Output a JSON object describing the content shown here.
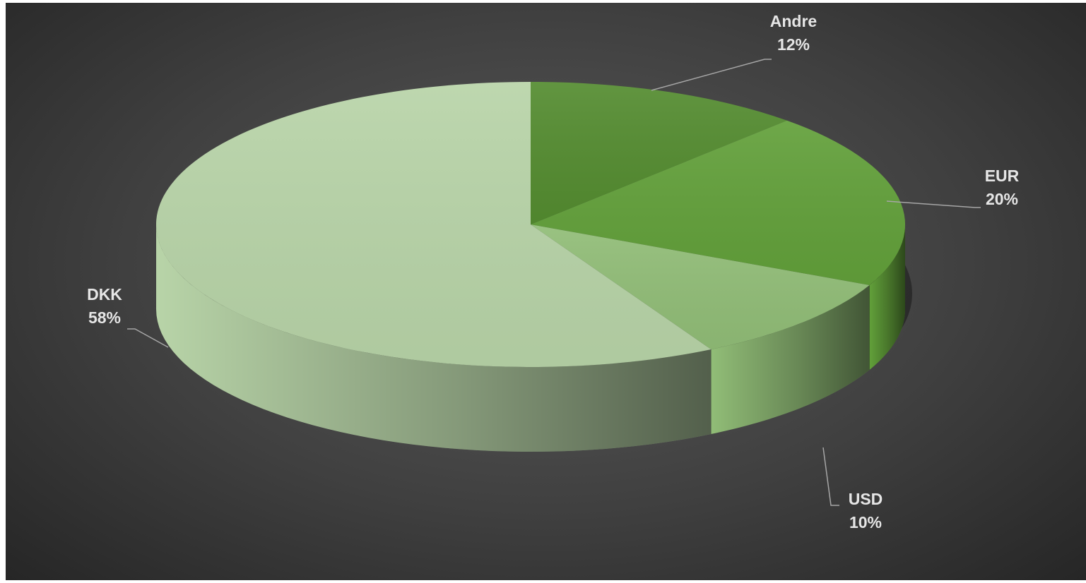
{
  "chart_data": {
    "type": "pie",
    "style": "3d",
    "title": "",
    "show_legend": false,
    "label_format": "category and percent",
    "slices": [
      {
        "category": "Andre",
        "value": 12,
        "label": "12%",
        "color": "#548c30"
      },
      {
        "category": "EUR",
        "value": 20,
        "label": "20%",
        "color": "#62a03a"
      },
      {
        "category": "USD",
        "value": 10,
        "label": "10%",
        "color": "#91bd77"
      },
      {
        "category": "DKK",
        "value": 58,
        "label": "58%",
        "color": "#b8d4a8"
      }
    ]
  },
  "colors": {
    "background_center": "#5a5a5a",
    "background_edge": "#262626",
    "label_text": "#e6e6e6",
    "leader_line": "#a6a6a6"
  }
}
